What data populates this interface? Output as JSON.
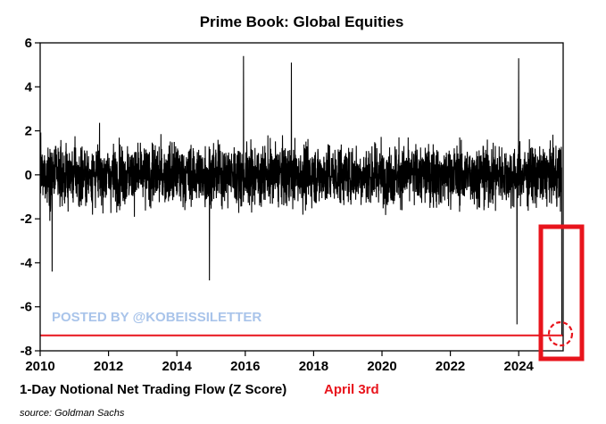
{
  "chart_data": {
    "type": "line",
    "title": "Prime Book: Global Equities",
    "xlabel": "1-Day Notional Net Trading Flow (Z Score)",
    "annotation": "April 3rd",
    "source": "source: Goldman Sachs",
    "watermark": "POSTED BY @KOBEISSILETTER",
    "ylim": [
      -8,
      6
    ],
    "xlim": [
      2010,
      2025.3
    ],
    "y_ticks": [
      "6",
      "4",
      "2",
      "0",
      "-2",
      "-4",
      "-6",
      "-8"
    ],
    "x_ticks": [
      "2010",
      "2012",
      "2014",
      "2016",
      "2018",
      "2020",
      "2022",
      "2024"
    ],
    "grid": false,
    "reference_line": -7.3,
    "notable_points": [
      {
        "x": 2010.35,
        "y": -4.4
      },
      {
        "x": 2014.95,
        "y": -4.8
      },
      {
        "x": 2015.95,
        "y": 5.4
      },
      {
        "x": 2017.35,
        "y": 5.1
      },
      {
        "x": 2023.95,
        "y": -6.8
      },
      {
        "x": 2024.0,
        "y": 5.3
      },
      {
        "x": 2025.26,
        "y": -7.3
      }
    ],
    "colors": {
      "series": "#000000",
      "highlight": "#e8141c",
      "watermark": "#a9c4ea"
    }
  }
}
